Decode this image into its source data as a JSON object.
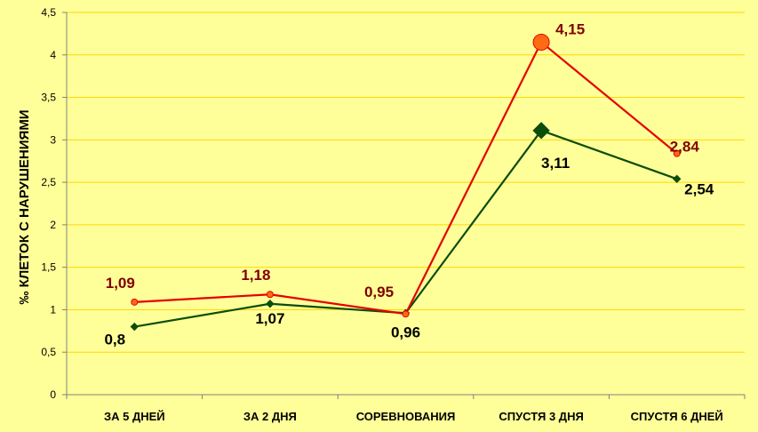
{
  "colors": {
    "background": "#ffff99",
    "grid": "#ffd700",
    "axis": "#808080",
    "series_red_line": "#e60000",
    "series_red_marker": "#ff6a13",
    "series_red_label": "#800000",
    "series_green_line": "#0b4d0b",
    "series_green_label": "#000000"
  },
  "chart_data": {
    "type": "line",
    "ylabel": "‰ КЛЕТОК С НАРУШЕНИЯМИ",
    "xlabel": "",
    "categories": [
      "ЗА 5 ДНЕЙ",
      "ЗА 2 ДНЯ",
      "СОРЕВНОВАНИЯ",
      "СПУСТЯ 3 ДНЯ",
      "СПУСТЯ 6 ДНЕЙ"
    ],
    "ylim": [
      0,
      4.5
    ],
    "yticks": [
      0,
      0.5,
      1,
      1.5,
      2,
      2.5,
      3,
      3.5,
      4,
      4.5
    ],
    "ytick_labels": [
      "0",
      "0,5",
      "1",
      "1,5",
      "2",
      "2,5",
      "3",
      "3,5",
      "4",
      "4,5"
    ],
    "grid": true,
    "legend": "none",
    "series": [
      {
        "values": [
          1.09,
          1.18,
          0.95,
          4.15,
          2.84
        ],
        "labels": [
          "1,09",
          "1,18",
          "0,95",
          "4,15",
          "2,84"
        ],
        "marker": "circle",
        "color": "#e60000"
      },
      {
        "values": [
          0.8,
          1.07,
          0.96,
          3.11,
          2.54
        ],
        "labels": [
          "0,8",
          "1,07",
          "0,96",
          "3,11",
          "2,54"
        ],
        "marker": "diamond",
        "color": "#0b4d0b"
      }
    ]
  }
}
